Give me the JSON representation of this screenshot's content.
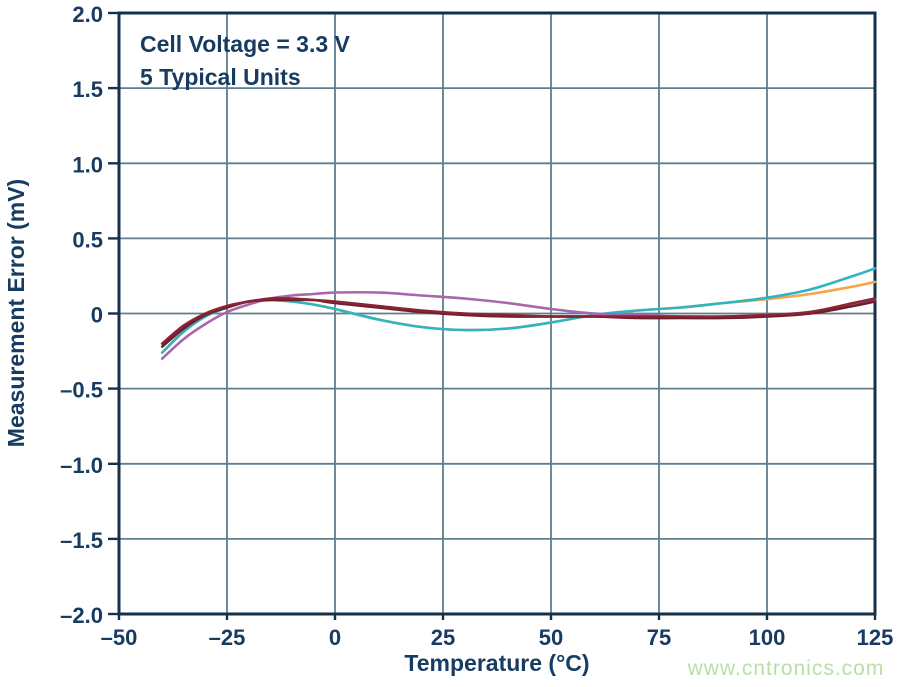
{
  "page": {
    "watermark": {
      "text": "www.cntronics.com",
      "color": "#b7dfa7"
    }
  },
  "chart_data": {
    "type": "line",
    "title": "",
    "annotation": {
      "line1": "Cell Voltage = 3.3 V",
      "line2": "5 Typical Units"
    },
    "xlabel": "Temperature (°C)",
    "ylabel": "Measurement Error (mV)",
    "xlim": [
      -50,
      125
    ],
    "ylim": [
      -2.0,
      2.0
    ],
    "grid": true,
    "legend": "none",
    "xticks": [
      -50,
      -25,
      0,
      25,
      50,
      75,
      100,
      125
    ],
    "xtick_labels": [
      "–50",
      "–25",
      "0",
      "25",
      "50",
      "75",
      "100",
      "125"
    ],
    "yticks": [
      2.0,
      1.5,
      1.0,
      0.5,
      0,
      -0.5,
      -1.0,
      -1.5,
      -2.0
    ],
    "ytick_labels": [
      "2.0",
      "1.5",
      "1.0",
      "0.5",
      "0",
      "–0.5",
      "–1.0",
      "–1.5",
      "–2.0"
    ],
    "colors": {
      "frame": "#14314d",
      "grid": "#5f7e8e",
      "text": "#183c61"
    },
    "series": [
      {
        "name": "unit-2-orange",
        "color": "#f5a54b",
        "x": [
          -40,
          -35,
          -30,
          -25,
          -20,
          -15,
          -10,
          -5,
          0,
          10,
          20,
          30,
          40,
          50,
          60,
          70,
          80,
          90,
          100,
          110,
          120,
          125
        ],
        "y": [
          -0.26,
          -0.12,
          -0.02,
          0.04,
          0.08,
          0.09,
          0.08,
          0.06,
          0.03,
          -0.04,
          -0.09,
          -0.11,
          -0.1,
          -0.06,
          -0.01,
          0.02,
          0.04,
          0.07,
          0.095,
          0.13,
          0.18,
          0.21
        ]
      },
      {
        "name": "unit-1-teal",
        "color": "#2fb4c2",
        "x": [
          -40,
          -35,
          -30,
          -25,
          -20,
          -15,
          -10,
          -5,
          0,
          10,
          20,
          30,
          40,
          50,
          60,
          70,
          80,
          90,
          100,
          110,
          120,
          125
        ],
        "y": [
          -0.26,
          -0.12,
          -0.02,
          0.04,
          0.08,
          0.09,
          0.08,
          0.06,
          0.03,
          -0.04,
          -0.09,
          -0.11,
          -0.1,
          -0.06,
          -0.01,
          0.02,
          0.04,
          0.07,
          0.105,
          0.16,
          0.25,
          0.3
        ]
      },
      {
        "name": "unit-3-purple",
        "color": "#a766ad",
        "x": [
          -40,
          -35,
          -30,
          -25,
          -20,
          -15,
          -10,
          -5,
          0,
          10,
          20,
          30,
          40,
          50,
          60,
          70,
          80,
          90,
          100,
          110,
          120,
          125
        ],
        "y": [
          -0.3,
          -0.17,
          -0.07,
          0.01,
          0.06,
          0.1,
          0.12,
          0.13,
          0.14,
          0.14,
          0.12,
          0.1,
          0.07,
          0.03,
          0.0,
          -0.01,
          -0.02,
          -0.02,
          -0.01,
          0.01,
          0.06,
          0.09
        ]
      },
      {
        "name": "unit-5-darkred",
        "color": "#6e1d2c",
        "x": [
          -40,
          -35,
          -30,
          -25,
          -20,
          -15,
          -10,
          -5,
          0,
          10,
          20,
          30,
          40,
          50,
          60,
          70,
          80,
          90,
          100,
          110,
          120,
          125
        ],
        "y": [
          -0.22,
          -0.1,
          -0.01,
          0.04,
          0.08,
          0.09,
          0.09,
          0.09,
          0.07,
          0.04,
          0.01,
          -0.01,
          -0.02,
          -0.02,
          -0.02,
          -0.03,
          -0.03,
          -0.03,
          -0.02,
          0.0,
          0.05,
          0.08
        ]
      },
      {
        "name": "unit-4-maroon",
        "color": "#8c2332",
        "x": [
          -40,
          -35,
          -30,
          -25,
          -20,
          -15,
          -10,
          -5,
          0,
          10,
          20,
          30,
          40,
          50,
          60,
          70,
          80,
          90,
          100,
          110,
          120,
          125
        ],
        "y": [
          -0.2,
          -0.08,
          0.0,
          0.05,
          0.08,
          0.1,
          0.1,
          0.09,
          0.08,
          0.05,
          0.02,
          0.0,
          -0.01,
          -0.02,
          -0.02,
          -0.02,
          -0.02,
          -0.02,
          -0.01,
          0.01,
          0.07,
          0.1
        ]
      }
    ]
  }
}
